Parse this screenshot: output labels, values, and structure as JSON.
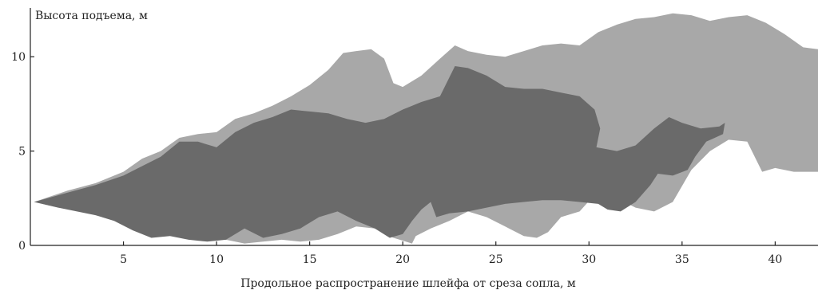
{
  "chart_data": {
    "type": "area",
    "title": "",
    "xlabel": "Продольное распространение шлейфа от среза сопла, м",
    "ylabel": "Высота подъема, м",
    "xlim": [
      0,
      42.3
    ],
    "ylim": [
      0,
      12.5
    ],
    "x_ticks": [
      5,
      10,
      15,
      20,
      25,
      30,
      35,
      40
    ],
    "y_ticks": [
      0,
      5,
      10
    ],
    "grid": false,
    "legend": "none",
    "series": [
      {
        "color": "#a8a8a8",
        "polygon": [
          [
            0.2,
            2.3
          ],
          [
            2,
            2.9
          ],
          [
            3.5,
            3.3
          ],
          [
            5,
            3.9
          ],
          [
            6,
            4.6
          ],
          [
            7,
            5.0
          ],
          [
            8,
            5.7
          ],
          [
            9,
            5.9
          ],
          [
            10,
            6.0
          ],
          [
            11,
            6.7
          ],
          [
            12,
            7.0
          ],
          [
            13,
            7.4
          ],
          [
            14,
            7.9
          ],
          [
            15,
            8.5
          ],
          [
            16,
            9.3
          ],
          [
            16.8,
            10.2
          ],
          [
            17.5,
            10.3
          ],
          [
            18.3,
            10.4
          ],
          [
            19,
            9.9
          ],
          [
            19.5,
            8.6
          ],
          [
            20,
            8.4
          ],
          [
            21,
            9.0
          ],
          [
            22,
            9.9
          ],
          [
            22.8,
            10.6
          ],
          [
            23.5,
            10.3
          ],
          [
            24.5,
            10.1
          ],
          [
            25.5,
            10.0
          ],
          [
            26.5,
            10.3
          ],
          [
            27.5,
            10.6
          ],
          [
            28.5,
            10.7
          ],
          [
            29.5,
            10.6
          ],
          [
            30.5,
            11.3
          ],
          [
            31.5,
            11.7
          ],
          [
            32.5,
            12.0
          ],
          [
            33.5,
            12.1
          ],
          [
            34.5,
            12.3
          ],
          [
            35.5,
            12.2
          ],
          [
            36.5,
            11.9
          ],
          [
            37.5,
            12.1
          ],
          [
            38.5,
            12.2
          ],
          [
            39.5,
            11.8
          ],
          [
            40.5,
            11.2
          ],
          [
            41.5,
            10.5
          ],
          [
            42.3,
            10.4
          ],
          [
            42.3,
            3.9
          ],
          [
            41,
            3.9
          ],
          [
            40,
            4.1
          ],
          [
            39.3,
            3.9
          ],
          [
            38.5,
            5.5
          ],
          [
            37.5,
            5.6
          ],
          [
            36.5,
            5.0
          ],
          [
            35.5,
            4.0
          ],
          [
            34.5,
            2.3
          ],
          [
            33.5,
            1.8
          ],
          [
            32.5,
            2.0
          ],
          [
            31.5,
            2.5
          ],
          [
            30.5,
            2.9
          ],
          [
            29.5,
            1.8
          ],
          [
            28.5,
            1.5
          ],
          [
            27.8,
            0.7
          ],
          [
            27.2,
            0.4
          ],
          [
            26.5,
            0.5
          ],
          [
            25.5,
            1.0
          ],
          [
            24.5,
            1.5
          ],
          [
            23.5,
            1.8
          ],
          [
            22.5,
            1.3
          ],
          [
            21.5,
            0.9
          ],
          [
            20.7,
            0.5
          ],
          [
            20.5,
            0.1
          ],
          [
            19.5,
            0.4
          ],
          [
            18.5,
            0.9
          ],
          [
            17.5,
            1.0
          ],
          [
            16.5,
            0.6
          ],
          [
            15.5,
            0.3
          ],
          [
            14.5,
            0.2
          ],
          [
            13.5,
            0.3
          ],
          [
            12.5,
            0.2
          ],
          [
            11.5,
            0.1
          ],
          [
            10.5,
            0.3
          ],
          [
            9.5,
            0.6
          ],
          [
            8.5,
            0.7
          ],
          [
            7.5,
            0.6
          ],
          [
            6.5,
            0.9
          ],
          [
            5.5,
            1.1
          ],
          [
            4.5,
            1.4
          ],
          [
            3.5,
            1.7
          ],
          [
            2.5,
            1.9
          ],
          [
            1.5,
            2.0
          ]
        ]
      },
      {
        "color": "#6a6a6a",
        "polygon": [
          [
            0.2,
            2.3
          ],
          [
            2,
            2.8
          ],
          [
            3.5,
            3.2
          ],
          [
            5,
            3.7
          ],
          [
            6,
            4.2
          ],
          [
            7,
            4.7
          ],
          [
            8,
            5.5
          ],
          [
            9,
            5.5
          ],
          [
            10,
            5.2
          ],
          [
            11,
            6.0
          ],
          [
            12,
            6.5
          ],
          [
            13,
            6.8
          ],
          [
            14,
            7.2
          ],
          [
            15,
            7.1
          ],
          [
            16,
            7.0
          ],
          [
            17,
            6.7
          ],
          [
            18,
            6.5
          ],
          [
            19,
            6.7
          ],
          [
            20,
            7.2
          ],
          [
            21,
            7.6
          ],
          [
            22,
            7.9
          ],
          [
            22.8,
            9.5
          ],
          [
            23.5,
            9.4
          ],
          [
            24.5,
            9.0
          ],
          [
            25.5,
            8.4
          ],
          [
            26.5,
            8.3
          ],
          [
            27.5,
            8.3
          ],
          [
            28.5,
            8.1
          ],
          [
            29.5,
            7.9
          ],
          [
            30.3,
            7.2
          ],
          [
            30.6,
            6.2
          ],
          [
            30.4,
            5.2
          ],
          [
            31.5,
            5.0
          ],
          [
            32.5,
            5.3
          ],
          [
            33.5,
            6.2
          ],
          [
            34.3,
            6.8
          ],
          [
            35,
            6.5
          ],
          [
            36,
            6.2
          ],
          [
            37,
            6.3
          ],
          [
            37.3,
            6.5
          ],
          [
            37.2,
            5.9
          ],
          [
            36.3,
            5.5
          ],
          [
            35.7,
            4.7
          ],
          [
            35.3,
            4.0
          ],
          [
            34.5,
            3.7
          ],
          [
            33.7,
            3.8
          ],
          [
            33.3,
            3.2
          ],
          [
            32.5,
            2.3
          ],
          [
            31.7,
            1.8
          ],
          [
            31,
            1.9
          ],
          [
            30.5,
            2.2
          ],
          [
            29.5,
            2.3
          ],
          [
            28.5,
            2.4
          ],
          [
            27.5,
            2.4
          ],
          [
            26.5,
            2.3
          ],
          [
            25.5,
            2.2
          ],
          [
            24.5,
            2.0
          ],
          [
            23.5,
            1.8
          ],
          [
            22.5,
            1.7
          ],
          [
            21.8,
            1.5
          ],
          [
            21.5,
            2.3
          ],
          [
            21,
            1.9
          ],
          [
            20.5,
            1.3
          ],
          [
            20,
            0.6
          ],
          [
            19.3,
            0.4
          ],
          [
            18.5,
            0.9
          ],
          [
            17.5,
            1.3
          ],
          [
            16.5,
            1.8
          ],
          [
            15.5,
            1.5
          ],
          [
            14.5,
            0.9
          ],
          [
            13.5,
            0.6
          ],
          [
            12.5,
            0.4
          ],
          [
            11.5,
            0.9
          ],
          [
            10.5,
            0.3
          ],
          [
            9.5,
            0.2
          ],
          [
            8.5,
            0.3
          ],
          [
            7.5,
            0.5
          ],
          [
            6.5,
            0.4
          ],
          [
            5.5,
            0.8
          ],
          [
            4.5,
            1.3
          ],
          [
            3.5,
            1.6
          ],
          [
            2.5,
            1.8
          ],
          [
            1.5,
            2.0
          ]
        ]
      }
    ]
  }
}
